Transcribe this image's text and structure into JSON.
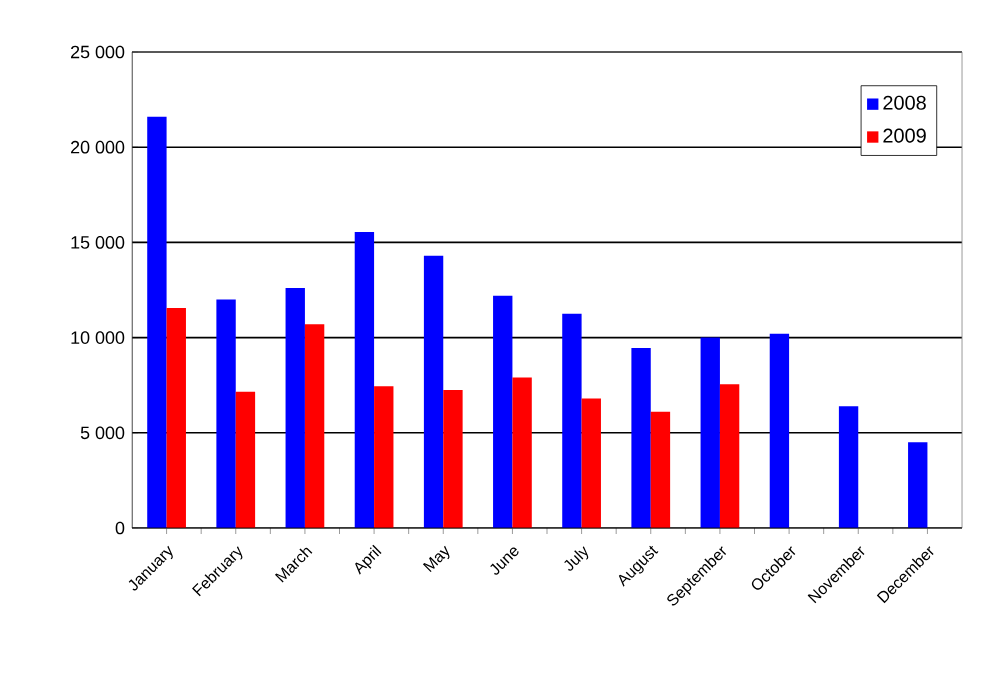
{
  "chart_data": {
    "type": "bar",
    "categories": [
      "January",
      "February",
      "March",
      "April",
      "May",
      "June",
      "July",
      "August",
      "September",
      "October",
      "November",
      "December"
    ],
    "series": [
      {
        "name": "2008",
        "color": "#0000ff",
        "values": [
          21600,
          12000,
          12600,
          15550,
          14300,
          12200,
          11250,
          9450,
          10000,
          10200,
          6400,
          4500
        ]
      },
      {
        "name": "2009",
        "color": "#ff0000",
        "values": [
          11550,
          7150,
          10700,
          7450,
          7250,
          7900,
          6800,
          6100,
          7550,
          null,
          null,
          null
        ]
      }
    ],
    "ylim": [
      0,
      25000
    ],
    "yticks": [
      {
        "value": 0,
        "label": "0"
      },
      {
        "value": 5000,
        "label": "5 000"
      },
      {
        "value": 10000,
        "label": "10 000"
      },
      {
        "value": 15000,
        "label": "15 000"
      },
      {
        "value": 20000,
        "label": "20 000"
      },
      {
        "value": 25000,
        "label": "25 000"
      }
    ],
    "grid": "y",
    "legend": "top right"
  }
}
